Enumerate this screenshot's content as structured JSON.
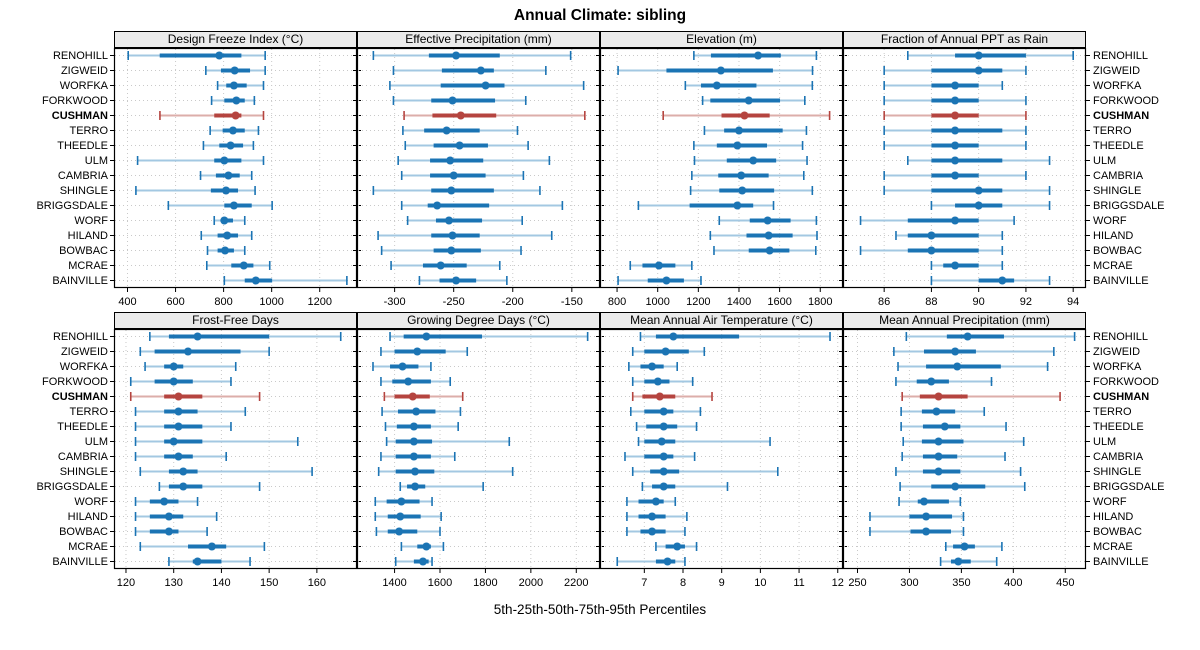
{
  "title": "Annual Climate: sibling",
  "footer": "5th-25th-50th-75th-95th Percentiles",
  "percentile_labels": [
    "5th",
    "25th",
    "50th",
    "75th",
    "95th"
  ],
  "stations": [
    "RENOHILL",
    "ZIGWEID",
    "WORFKA",
    "FORKWOOD",
    "CUSHMAN",
    "TERRO",
    "THEEDLE",
    "ULM",
    "CAMBRIA",
    "SHINGLE",
    "BRIGGSDALE",
    "WORF",
    "HILAND",
    "BOWBAC",
    "MCRAE",
    "BAINVILLE"
  ],
  "highlight_station": "CUSHMAN",
  "colors": {
    "normal": "#1b74b4",
    "normal_light": "#a3c8e2",
    "highlight": "#b5443f",
    "highlight_light": "#dcaeaa",
    "grid": "#c9c9c9",
    "strip_bg": "#ebebeb",
    "border": "#000000"
  },
  "chart_data": [
    {
      "type": "dotplot",
      "title": "Design Freeze Index (°C)",
      "row": 0,
      "xlim": [
        348,
        1351
      ],
      "ticks": [
        400,
        600,
        800,
        1000,
        1200
      ],
      "percentiles": [
        [
          403,
          534,
          782,
          874,
          973
        ],
        [
          726,
          789,
          846,
          910,
          973
        ],
        [
          775,
          811,
          843,
          896,
          966
        ],
        [
          750,
          803,
          853,
          888,
          928
        ],
        [
          535,
          761,
          850,
          874,
          966
        ],
        [
          744,
          796,
          839,
          888,
          945
        ],
        [
          716,
          782,
          829,
          881,
          924
        ],
        [
          442,
          761,
          803,
          874,
          966
        ],
        [
          704,
          768,
          820,
          867,
          917
        ],
        [
          435,
          747,
          810,
          860,
          931
        ],
        [
          570,
          803,
          843,
          917,
          1002
        ],
        [
          761,
          789,
          803,
          839,
          888
        ],
        [
          707,
          775,
          815,
          860,
          917
        ],
        [
          733,
          775,
          806,
          843,
          888
        ],
        [
          730,
          832,
          884,
          924,
          992
        ],
        [
          803,
          888,
          934,
          1002,
          1313
        ]
      ]
    },
    {
      "type": "dotplot",
      "title": "Effective Precipitation (mm)",
      "row": 0,
      "xlim": [
        -331,
        -127
      ],
      "ticks": [
        -300,
        -250,
        -200,
        -150
      ],
      "percentiles": [
        [
          -318,
          -271,
          -248,
          -211,
          -151
        ],
        [
          -301,
          -260,
          -227,
          -216,
          -172
        ],
        [
          -304,
          -261,
          -223,
          -207,
          -140
        ],
        [
          -301,
          -269,
          -251,
          -215,
          -189
        ],
        [
          -292,
          -268,
          -244,
          -214,
          -139
        ],
        [
          -293,
          -275,
          -256,
          -228,
          -196
        ],
        [
          -291,
          -267,
          -245,
          -221,
          -187
        ],
        [
          -297,
          -270,
          -253,
          -225,
          -169
        ],
        [
          -294,
          -270,
          -250,
          -223,
          -191
        ],
        [
          -318,
          -269,
          -252,
          -216,
          -177
        ],
        [
          -294,
          -272,
          -264,
          -220,
          -158
        ],
        [
          -289,
          -265,
          -254,
          -226,
          -192
        ],
        [
          -314,
          -269,
          -251,
          -228,
          -167
        ],
        [
          -311,
          -267,
          -252,
          -227,
          -193
        ],
        [
          -303,
          -276,
          -261,
          -239,
          -211
        ],
        [
          -279,
          -262,
          -248,
          -231,
          -205
        ]
      ]
    },
    {
      "type": "dotplot",
      "title": "Elevation (m)",
      "row": 0,
      "xlim": [
        721,
        1907
      ],
      "ticks": [
        800,
        1000,
        1200,
        1400,
        1600,
        1800
      ],
      "percentiles": [
        [
          1178,
          1262,
          1494,
          1606,
          1781
        ],
        [
          805,
          1043,
          1311,
          1567,
          1762
        ],
        [
          1136,
          1213,
          1291,
          1486,
          1761
        ],
        [
          1221,
          1259,
          1448,
          1602,
          1724
        ],
        [
          1027,
          1314,
          1427,
          1551,
          1846
        ],
        [
          1230,
          1327,
          1400,
          1615,
          1732
        ],
        [
          1178,
          1291,
          1392,
          1538,
          1713
        ],
        [
          1181,
          1340,
          1470,
          1583,
          1735
        ],
        [
          1168,
          1298,
          1411,
          1546,
          1719
        ],
        [
          1162,
          1303,
          1416,
          1573,
          1761
        ],
        [
          905,
          1157,
          1392,
          1470,
          1570
        ],
        [
          1303,
          1453,
          1541,
          1654,
          1781
        ],
        [
          1259,
          1437,
          1546,
          1664,
          1784
        ],
        [
          1277,
          1448,
          1551,
          1648,
          1778
        ],
        [
          865,
          925,
          1006,
          1087,
          1168
        ],
        [
          805,
          951,
          1043,
          1129,
          1213
        ]
      ]
    },
    {
      "type": "dotplot",
      "title": "Fraction of Annual PPT as Rain",
      "row": 0,
      "xlim": [
        84.3,
        94.5
      ],
      "ticks": [
        86,
        88,
        90,
        92,
        94
      ],
      "percentiles": [
        [
          87,
          89,
          90,
          92,
          94
        ],
        [
          86,
          88,
          90,
          91,
          92
        ],
        [
          86,
          88,
          89,
          90,
          91
        ],
        [
          86,
          88,
          89,
          90,
          92
        ],
        [
          86,
          88,
          89,
          90,
          92
        ],
        [
          86,
          88,
          89,
          91,
          92
        ],
        [
          86,
          88,
          89,
          90,
          92
        ],
        [
          87,
          88,
          89,
          91,
          93
        ],
        [
          86,
          88,
          89,
          90,
          92
        ],
        [
          86,
          88,
          90,
          91,
          93
        ],
        [
          88,
          89,
          90,
          91,
          93
        ],
        [
          85,
          87,
          89,
          90,
          91.5
        ],
        [
          86.5,
          87,
          88,
          90,
          91
        ],
        [
          85,
          87,
          88,
          90,
          91
        ],
        [
          88,
          88.5,
          89,
          90,
          91
        ],
        [
          88,
          90,
          91,
          91.5,
          93
        ]
      ]
    },
    {
      "type": "dotplot",
      "title": "Frost-Free Days",
      "row": 1,
      "xlim": [
        117.7,
        168.2
      ],
      "ticks": [
        120,
        130,
        140,
        150,
        160
      ],
      "percentiles": [
        [
          125,
          129,
          135,
          150,
          165
        ],
        [
          123,
          126,
          133,
          144,
          150
        ],
        [
          124,
          128,
          130,
          132,
          143
        ],
        [
          121,
          126,
          130,
          134,
          142
        ],
        [
          121,
          128,
          131,
          136,
          148
        ],
        [
          122,
          128,
          131,
          135,
          145
        ],
        [
          122,
          128,
          131,
          136,
          142
        ],
        [
          122,
          128,
          130,
          136,
          156
        ],
        [
          122,
          128,
          131,
          134,
          141
        ],
        [
          123,
          129,
          132,
          135,
          159
        ],
        [
          127,
          129,
          132,
          136,
          148
        ],
        [
          122,
          125,
          128,
          131,
          135
        ],
        [
          122,
          125,
          129,
          132,
          139
        ],
        [
          122,
          125,
          129,
          131,
          137
        ],
        [
          123,
          133,
          138,
          141,
          149
        ],
        [
          129,
          134,
          135,
          140,
          146
        ]
      ]
    },
    {
      "type": "dotplot",
      "title": "Growing Degree Days (°C)",
      "row": 1,
      "xlim": [
        1239,
        2300
      ],
      "ticks": [
        1400,
        1600,
        1800,
        2000,
        2200
      ],
      "percentiles": [
        [
          1380,
          1440,
          1540,
          1785,
          2250
        ],
        [
          1340,
          1400,
          1500,
          1625,
          1720
        ],
        [
          1305,
          1380,
          1435,
          1505,
          1560
        ],
        [
          1340,
          1390,
          1460,
          1560,
          1645
        ],
        [
          1355,
          1400,
          1480,
          1555,
          1700
        ],
        [
          1345,
          1415,
          1495,
          1580,
          1690
        ],
        [
          1360,
          1410,
          1485,
          1560,
          1680
        ],
        [
          1365,
          1405,
          1485,
          1565,
          1905
        ],
        [
          1340,
          1405,
          1485,
          1560,
          1665
        ],
        [
          1330,
          1405,
          1490,
          1575,
          1920
        ],
        [
          1425,
          1455,
          1490,
          1535,
          1790
        ],
        [
          1315,
          1365,
          1430,
          1510,
          1565
        ],
        [
          1315,
          1370,
          1425,
          1515,
          1605
        ],
        [
          1320,
          1370,
          1420,
          1500,
          1600
        ],
        [
          1430,
          1500,
          1540,
          1560,
          1615
        ],
        [
          1405,
          1485,
          1525,
          1550,
          1565
        ]
      ]
    },
    {
      "type": "dotplot",
      "title": "Mean Annual Air Temperature (°C)",
      "row": 1,
      "xlim": [
        5.88,
        12.11
      ],
      "ticks": [
        7,
        8,
        9,
        10,
        11,
        12
      ],
      "percentiles": [
        [
          6.9,
          7.3,
          7.75,
          9.45,
          11.8
        ],
        [
          6.7,
          7.0,
          7.55,
          8.15,
          8.55
        ],
        [
          6.6,
          6.9,
          7.2,
          7.5,
          7.85
        ],
        [
          6.7,
          7.0,
          7.35,
          7.65,
          8.25
        ],
        [
          6.7,
          6.95,
          7.4,
          7.8,
          8.75
        ],
        [
          6.65,
          7.0,
          7.5,
          7.75,
          8.45
        ],
        [
          6.8,
          7.05,
          7.5,
          7.85,
          8.35
        ],
        [
          6.85,
          7.0,
          7.45,
          7.8,
          10.25
        ],
        [
          6.5,
          7.0,
          7.5,
          7.75,
          8.3
        ],
        [
          6.7,
          7.15,
          7.5,
          7.9,
          10.45
        ],
        [
          6.95,
          7.2,
          7.5,
          7.8,
          9.15
        ],
        [
          6.55,
          6.85,
          7.3,
          7.5,
          7.8
        ],
        [
          6.55,
          6.85,
          7.2,
          7.55,
          8.1
        ],
        [
          6.55,
          6.9,
          7.2,
          7.55,
          8.05
        ],
        [
          7.3,
          7.55,
          7.85,
          8.05,
          8.35
        ],
        [
          6.3,
          7.3,
          7.6,
          7.8,
          8.05
        ]
      ]
    },
    {
      "type": "dotplot",
      "title": "Mean Annual Precipitation (mm)",
      "row": 1,
      "xlim": [
        237,
        469
      ],
      "ticks": [
        250,
        300,
        350,
        400,
        450
      ],
      "percentiles": [
        [
          297,
          336,
          356,
          391,
          459
        ],
        [
          285,
          314,
          344,
          364,
          439
        ],
        [
          289,
          316,
          346,
          388,
          433
        ],
        [
          287,
          307,
          321,
          338,
          379
        ],
        [
          293,
          310,
          328,
          356,
          445
        ],
        [
          292,
          312,
          326,
          344,
          372
        ],
        [
          292,
          313,
          334,
          349,
          393
        ],
        [
          294,
          312,
          328,
          352,
          410
        ],
        [
          293,
          313,
          328,
          346,
          392
        ],
        [
          287,
          313,
          328,
          349,
          407
        ],
        [
          291,
          321,
          344,
          373,
          411
        ],
        [
          290,
          308,
          314,
          338,
          349
        ],
        [
          262,
          300,
          316,
          341,
          352
        ],
        [
          262,
          301,
          316,
          340,
          352
        ],
        [
          335,
          342,
          353,
          363,
          389
        ],
        [
          330,
          340,
          347,
          359,
          384
        ]
      ]
    }
  ]
}
